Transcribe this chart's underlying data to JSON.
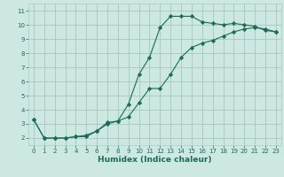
{
  "xlabel": "Humidex (Indice chaleur)",
  "bg_color": "#cce8e0",
  "grid_color": "#aaccc4",
  "line_color": "#1a6b5a",
  "xlim": [
    -0.5,
    23.5
  ],
  "ylim": [
    1.5,
    11.5
  ],
  "xticks": [
    0,
    1,
    2,
    3,
    4,
    5,
    6,
    7,
    8,
    9,
    10,
    11,
    12,
    13,
    14,
    15,
    16,
    17,
    18,
    19,
    20,
    21,
    22,
    23
  ],
  "yticks": [
    2,
    3,
    4,
    5,
    6,
    7,
    8,
    9,
    10,
    11
  ],
  "line1_x": [
    0,
    1,
    2,
    3,
    4,
    5,
    6,
    7,
    8,
    9,
    10,
    11,
    12,
    13,
    14,
    15,
    16,
    17,
    18,
    19,
    20,
    21,
    22,
    23
  ],
  "line1_y": [
    3.3,
    2.0,
    2.0,
    2.0,
    2.1,
    2.1,
    2.5,
    3.1,
    3.2,
    4.4,
    6.5,
    7.7,
    9.8,
    10.6,
    10.6,
    10.6,
    10.2,
    10.1,
    10.0,
    10.1,
    10.0,
    9.9,
    9.6,
    9.5
  ],
  "line2_x": [
    0,
    1,
    2,
    3,
    4,
    5,
    6,
    7,
    8,
    9,
    10,
    11,
    12,
    13,
    14,
    15,
    16,
    17,
    18,
    19,
    20,
    21,
    22,
    23
  ],
  "line2_y": [
    3.3,
    2.0,
    2.0,
    2.0,
    2.1,
    2.2,
    2.5,
    3.0,
    3.2,
    3.5,
    4.5,
    5.5,
    5.5,
    6.5,
    7.7,
    8.4,
    8.7,
    8.9,
    9.2,
    9.5,
    9.7,
    9.8,
    9.7,
    9.5
  ]
}
